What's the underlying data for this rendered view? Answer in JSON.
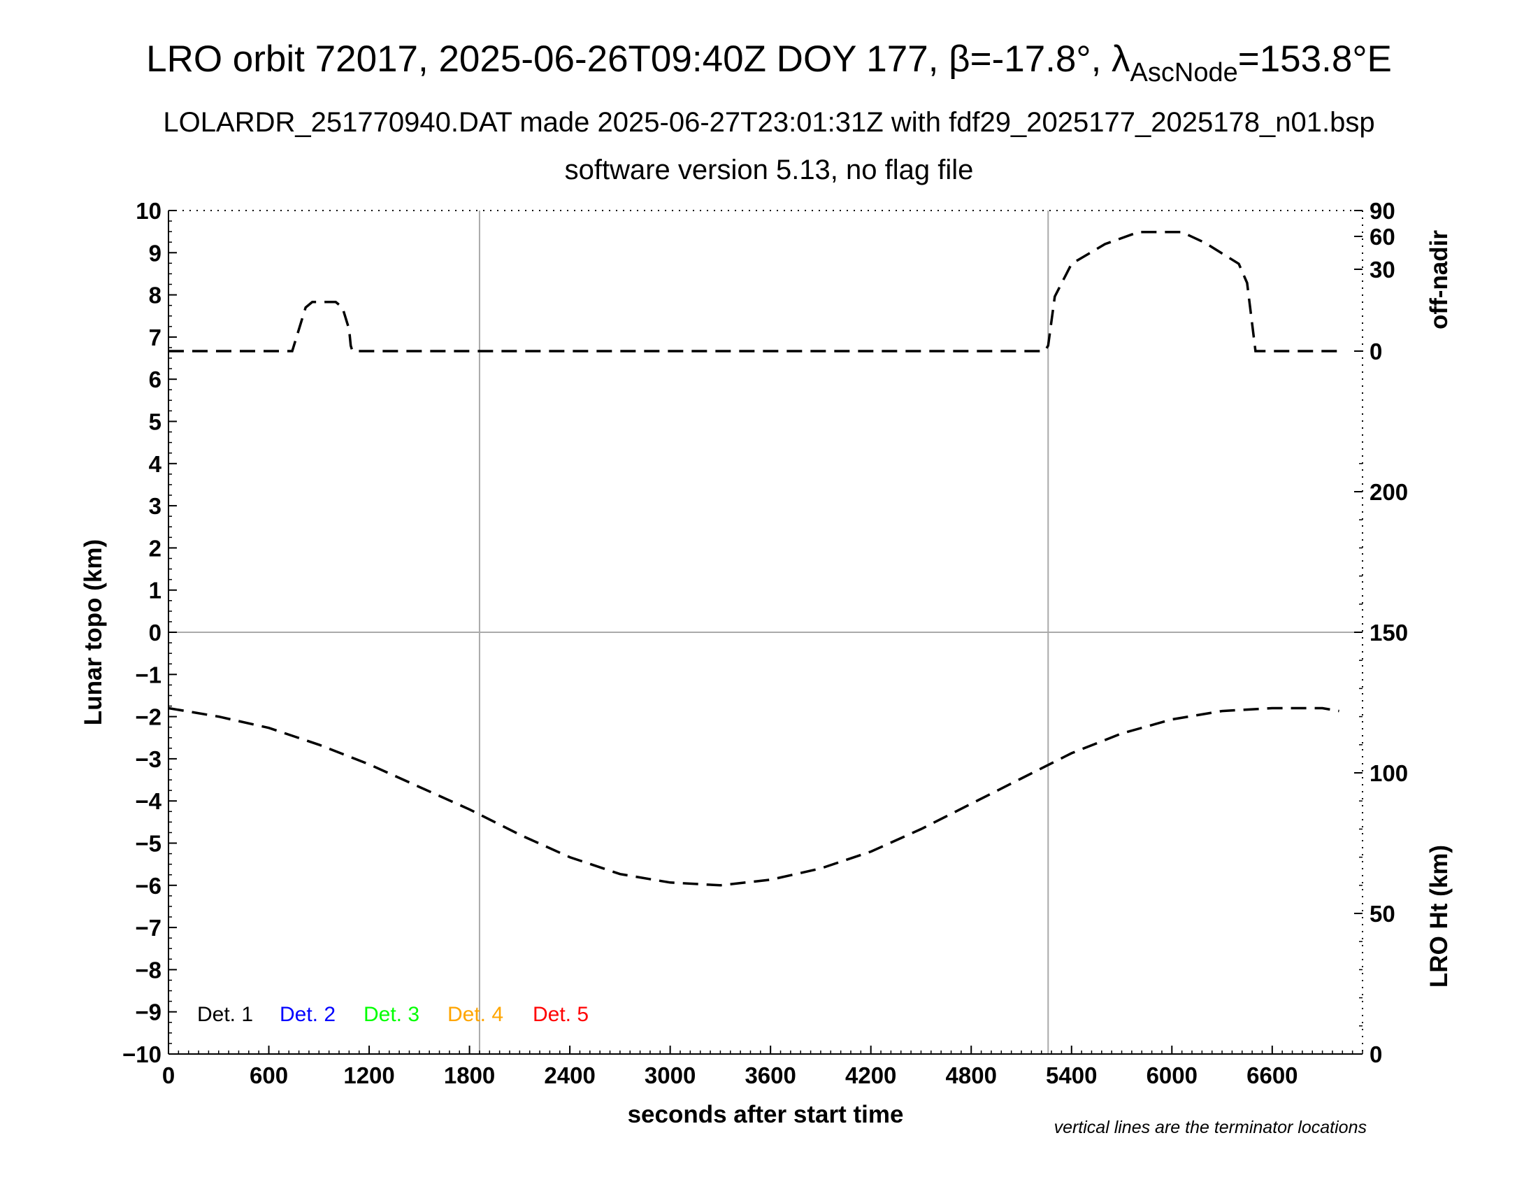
{
  "title": {
    "main": "LRO orbit 72017, 2025-06-26T09:40Z DOY 177, β=-17.8°, λ",
    "subscript": "AscNode",
    "suffix": "=153.8°E",
    "line2": "LOLARDR_251770940.DAT made 2025-06-27T23:01:31Z with fdf29_2025177_2025178_n01.bsp",
    "line3": "software version 5.13, no flag file"
  },
  "note": "vertical lines are the terminator locations",
  "chart_data": {
    "type": "line",
    "xlabel": "seconds after start time",
    "ylabel_left": "Lunar topo (km)",
    "ylabel_right_top": "off-nadir",
    "ylabel_right_bottom": "LRO Ht (km)",
    "xlim": [
      0,
      7140
    ],
    "ylim": [
      -10,
      10
    ],
    "x_ticks": [
      0,
      600,
      1200,
      1800,
      2400,
      3000,
      3600,
      4200,
      4800,
      5400,
      6000,
      6600
    ],
    "y_ticks": [
      10,
      9,
      8,
      7,
      6,
      5,
      4,
      3,
      2,
      1,
      0,
      -1,
      -2,
      -3,
      -4,
      -5,
      -6,
      -7,
      -8,
      -9,
      -10
    ],
    "y_tick_labels": [
      "10",
      "9",
      "8",
      "7",
      "6",
      "5",
      "4",
      "3",
      "2",
      "1",
      "0",
      "−1",
      "−2",
      "−3",
      "−4",
      "−5",
      "−6",
      "−7",
      "−8",
      "−9",
      "−10"
    ],
    "right_top_axis": {
      "ticks": [
        0,
        30,
        60,
        90
      ],
      "labels": [
        "0",
        "30",
        "60",
        "90"
      ]
    },
    "right_bottom_axis": {
      "ylim": [
        0,
        300
      ],
      "ticks": [
        0,
        50,
        100,
        150,
        200
      ],
      "labels": [
        "0",
        "50",
        "100",
        "150",
        "200"
      ]
    },
    "terminator_lines_x": [
      1860,
      5260
    ],
    "zero_line_y": 0,
    "grid": false,
    "legend": [
      {
        "label": "Det. 1",
        "color": "#000000"
      },
      {
        "label": "Det. 2",
        "color": "#0000ff"
      },
      {
        "label": "Det. 3",
        "color": "#00ff00"
      },
      {
        "label": "Det. 4",
        "color": "#ffa500"
      },
      {
        "label": "Det. 5",
        "color": "#ff0000"
      }
    ],
    "legend_position": "bottom-left",
    "series": [
      {
        "axis": "right-top",
        "style": "dashed",
        "color": "#000000",
        "x": [
          0,
          740,
          780,
          820,
          860,
          1000,
          1040,
          1080,
          1090,
          1100,
          1300,
          1400,
          5240,
          5260,
          5300,
          5400,
          5600,
          5800,
          5860,
          6060,
          6200,
          6400,
          6450,
          6480,
          6500,
          6600,
          7000
        ],
        "y": [
          0,
          0,
          8,
          16,
          18,
          18,
          16,
          8,
          2,
          0,
          0,
          0,
          0,
          2,
          20,
          35,
          53,
          65,
          65,
          65,
          54,
          35,
          25,
          10,
          0,
          0,
          0
        ]
      },
      {
        "axis": "right-bottom",
        "style": "dashed",
        "color": "#000000",
        "x": [
          0,
          300,
          600,
          900,
          1200,
          1500,
          1800,
          2100,
          2400,
          2700,
          3000,
          3300,
          3600,
          3900,
          4200,
          4500,
          4800,
          5100,
          5400,
          5700,
          6000,
          6300,
          6600,
          6900,
          7000
        ],
        "y": [
          123,
          120,
          116,
          110,
          103,
          95,
          87,
          78,
          70,
          64,
          61,
          60,
          62,
          66,
          72,
          80,
          89,
          98,
          107,
          114,
          119,
          122,
          123,
          123,
          122
        ]
      }
    ]
  }
}
